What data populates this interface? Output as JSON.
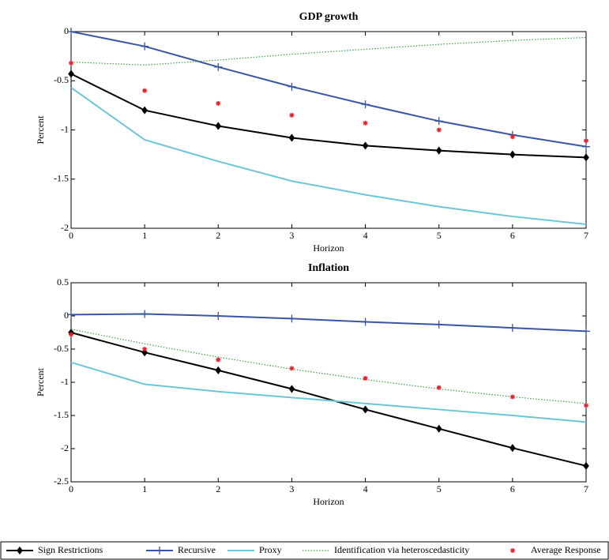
{
  "chart_data": [
    {
      "type": "line",
      "title": "GDP growth",
      "xlabel": "Horizon",
      "ylabel": "Percent",
      "x": [
        0,
        1,
        2,
        3,
        4,
        5,
        6,
        7
      ],
      "xlim": [
        0,
        7
      ],
      "xticks": [
        0,
        1,
        2,
        3,
        4,
        5,
        6,
        7
      ],
      "ylim": [
        -2,
        0
      ],
      "yticks": [
        -2,
        -1.5,
        -1,
        -0.5,
        0
      ],
      "series": [
        {
          "name": "Sign Restrictions",
          "color": "#000000",
          "linestyle": "solid",
          "marker": "diamond",
          "values": [
            -0.43,
            -0.8,
            -0.96,
            -1.08,
            -1.16,
            -1.21,
            -1.25,
            -1.28
          ]
        },
        {
          "name": "Recursive",
          "color": "#3a55a4",
          "linestyle": "solid",
          "marker": "plus",
          "values": [
            0,
            -0.15,
            -0.36,
            -0.56,
            -0.74,
            -0.91,
            -1.05,
            -1.17
          ]
        },
        {
          "name": "Proxy",
          "color": "#6cc5d8",
          "linestyle": "solid",
          "marker": "none",
          "values": [
            -0.57,
            -1.1,
            -1.32,
            -1.52,
            -1.66,
            -1.78,
            -1.88,
            -1.96
          ]
        },
        {
          "name": "Identification via heteroscedasticity",
          "color": "#3fa34d",
          "linestyle": "dotted",
          "marker": "none",
          "values": [
            -0.31,
            -0.34,
            -0.29,
            -0.23,
            -0.18,
            -0.13,
            -0.09,
            -0.06
          ]
        },
        {
          "name": "Average Response",
          "color": "#e8202a",
          "linestyle": "none",
          "marker": "star",
          "values": [
            -0.32,
            -0.6,
            -0.73,
            -0.85,
            -0.93,
            -1.0,
            -1.07,
            -1.11
          ]
        }
      ]
    },
    {
      "type": "line",
      "title": "Inflation",
      "xlabel": "Horizon",
      "ylabel": "Percent",
      "x": [
        0,
        1,
        2,
        3,
        4,
        5,
        6,
        7
      ],
      "xlim": [
        0,
        7
      ],
      "xticks": [
        0,
        1,
        2,
        3,
        4,
        5,
        6,
        7
      ],
      "ylim": [
        -2.5,
        0.5
      ],
      "yticks": [
        -2.5,
        -2,
        -1.5,
        -1,
        -0.5,
        0,
        0.5
      ],
      "series": [
        {
          "name": "Sign Restrictions",
          "color": "#000000",
          "linestyle": "solid",
          "marker": "diamond",
          "values": [
            -0.25,
            -0.55,
            -0.82,
            -1.1,
            -1.41,
            -1.7,
            -1.99,
            -2.26
          ]
        },
        {
          "name": "Recursive",
          "color": "#3a55a4",
          "linestyle": "solid",
          "marker": "plus",
          "values": [
            0.02,
            0.03,
            0.0,
            -0.04,
            -0.09,
            -0.13,
            -0.18,
            -0.23
          ]
        },
        {
          "name": "Proxy",
          "color": "#6cc5d8",
          "linestyle": "solid",
          "marker": "none",
          "values": [
            -0.7,
            -1.03,
            -1.14,
            -1.23,
            -1.32,
            -1.41,
            -1.5,
            -1.6
          ]
        },
        {
          "name": "Identification via heteroscedasticity",
          "color": "#3fa34d",
          "linestyle": "dotted",
          "marker": "none",
          "values": [
            -0.2,
            -0.42,
            -0.62,
            -0.8,
            -0.96,
            -1.1,
            -1.22,
            -1.32
          ]
        },
        {
          "name": "Average Response",
          "color": "#e8202a",
          "linestyle": "none",
          "marker": "star",
          "values": [
            -0.28,
            -0.5,
            -0.66,
            -0.79,
            -0.94,
            -1.08,
            -1.22,
            -1.35
          ]
        }
      ]
    }
  ]
}
